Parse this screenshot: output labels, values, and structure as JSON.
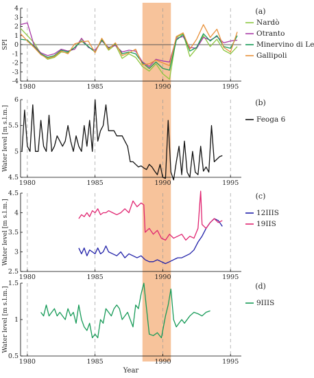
{
  "chart_data": [
    {
      "panel_tag": "(a)",
      "type": "line",
      "ylabel": "SPI",
      "ylim": [
        -4,
        4
      ],
      "yticks": [
        -4,
        -3,
        -2,
        -1,
        0,
        1,
        2,
        3,
        4
      ],
      "xlim": [
        1979.5,
        1995.8
      ],
      "xticks": [
        1980,
        1985,
        1990,
        1995
      ],
      "zero_line": true,
      "series": [
        {
          "name": "Nardò",
          "color": "#8cc63f",
          "x": [
            1979.5,
            1980,
            1980.5,
            1981,
            1981.5,
            1982,
            1982.5,
            1983,
            1983.5,
            1984,
            1984.5,
            1985,
            1985.5,
            1986,
            1986.5,
            1987,
            1987.5,
            1988,
            1988.5,
            1989,
            1989.5,
            1990,
            1990.5,
            1991,
            1991.5,
            1992,
            1992.5,
            1993,
            1993.5,
            1994,
            1994.5,
            1995,
            1995.5
          ],
          "y": [
            1.8,
            1.0,
            0.2,
            -1.0,
            -1.6,
            -1.4,
            -0.8,
            -0.9,
            -0.3,
            0.6,
            -0.2,
            -0.8,
            0.6,
            -0.6,
            0.0,
            -1.5,
            -1.0,
            -1.4,
            -2.4,
            -2.9,
            -2.1,
            -3.2,
            -3.8,
            0.8,
            1.2,
            -1.3,
            -0.4,
            1.0,
            -0.2,
            0.6,
            -0.6,
            -1.0,
            -0.2
          ]
        },
        {
          "name": "Otranto",
          "color": "#a83aa6",
          "x": [
            1979.5,
            1980,
            1980.5,
            1981,
            1981.5,
            1982,
            1982.5,
            1983,
            1983.5,
            1984,
            1984.5,
            1985,
            1985.5,
            1986,
            1986.5,
            1987,
            1987.5,
            1988,
            1988.5,
            1989,
            1989.5,
            1990,
            1990.5,
            1991,
            1991.5,
            1992,
            1992.5,
            1993,
            1993.5,
            1994,
            1994.5,
            1995,
            1995.5
          ],
          "y": [
            2.2,
            2.4,
            -0.1,
            -0.9,
            -1.2,
            -1.0,
            -0.5,
            -0.7,
            -0.5,
            0.7,
            -0.3,
            -0.6,
            0.4,
            -0.3,
            -0.1,
            -0.8,
            -0.6,
            -0.7,
            -1.9,
            -2.4,
            -1.6,
            -1.8,
            -1.9,
            0.7,
            0.9,
            -0.3,
            -0.4,
            0.8,
            0.5,
            0.9,
            0.2,
            0.4,
            0.5
          ]
        },
        {
          "name": "Minervino di Lecce",
          "color": "#169a57",
          "x": [
            1979.5,
            1980,
            1980.5,
            1981,
            1981.5,
            1982,
            1982.5,
            1983,
            1983.5,
            1984,
            1984.5,
            1985,
            1985.5,
            1986,
            1986.5,
            1987,
            1987.5,
            1988,
            1988.5,
            1989,
            1989.5,
            1990,
            1990.5,
            1991,
            1991.5,
            1992,
            1992.5,
            1993,
            1993.5,
            1994,
            1994.5,
            1995,
            1995.5
          ],
          "y": [
            0.6,
            0.5,
            -0.2,
            -1.0,
            -1.4,
            -1.2,
            -0.6,
            -0.8,
            -0.3,
            0.4,
            -0.2,
            -0.8,
            0.5,
            -0.4,
            0.1,
            -1.0,
            -0.8,
            -1.0,
            -2.0,
            -2.6,
            -1.9,
            -2.6,
            -2.8,
            0.5,
            1.1,
            -0.7,
            -0.3,
            1.2,
            0.4,
            1.0,
            -0.2,
            -0.4,
            1.0
          ]
        },
        {
          "name": "Gallipoli",
          "color": "#e8913a",
          "x": [
            1979.5,
            1980,
            1980.5,
            1981,
            1981.5,
            1982,
            1982.5,
            1983,
            1983.5,
            1984,
            1984.5,
            1985,
            1985.5,
            1986,
            1986.5,
            1987,
            1987.5,
            1988,
            1988.5,
            1989,
            1989.5,
            1990,
            1990.5,
            1991,
            1991.5,
            1992,
            1992.5,
            1993,
            1993.5,
            1994,
            1994.5,
            1995,
            1995.5
          ],
          "y": [
            1.2,
            0.4,
            -0.3,
            -1.1,
            -1.5,
            -1.3,
            -0.7,
            -1.0,
            0.1,
            0.3,
            0.4,
            -0.9,
            0.7,
            -0.5,
            0.2,
            -1.2,
            -0.9,
            -0.5,
            -2.2,
            -2.1,
            -1.7,
            -2.0,
            -2.3,
            0.9,
            1.3,
            -0.5,
            0.6,
            2.2,
            0.8,
            1.7,
            -0.3,
            -0.8,
            1.4
          ]
        }
      ]
    },
    {
      "panel_tag": "(b)",
      "type": "line",
      "ylabel": "Water level [m s.l.m.]",
      "ylim": [
        4.5,
        6
      ],
      "yticks": [
        4.5,
        5,
        5.5,
        6
      ],
      "ytick_labels": [
        "4.5",
        "5",
        "5.5",
        "6"
      ],
      "xlim": [
        1979.5,
        1995.8
      ],
      "xticks": [
        1980,
        1985,
        1990,
        1995
      ],
      "series": [
        {
          "name": "Feoga 6",
          "color": "#111111",
          "x": [
            1979.6,
            1979.8,
            1980.0,
            1980.2,
            1980.4,
            1980.6,
            1980.8,
            1981.0,
            1981.2,
            1981.4,
            1981.6,
            1981.8,
            1982.0,
            1982.2,
            1982.4,
            1982.6,
            1982.8,
            1983.0,
            1983.2,
            1983.4,
            1983.6,
            1983.8,
            1984.0,
            1984.2,
            1984.4,
            1984.6,
            1984.8,
            1985.0,
            1985.2,
            1985.4,
            1985.6,
            1985.8,
            1986.0,
            1986.2,
            1986.4,
            1986.6,
            1986.8,
            1987.0,
            1987.2,
            1987.4,
            1987.6,
            1987.8,
            1988.0,
            1988.2,
            1988.4,
            1988.6,
            1988.8,
            1989.0,
            1989.2,
            1989.4,
            1989.6,
            1989.8,
            1990.0,
            1990.2,
            1990.4,
            1990.6,
            1990.8,
            1991.0,
            1991.2,
            1991.4,
            1991.6,
            1991.8,
            1992.0,
            1992.2,
            1992.4,
            1992.6,
            1992.8,
            1993.0,
            1993.2,
            1993.4,
            1993.6,
            1993.8,
            1994.0,
            1994.2,
            1994.4
          ],
          "y": [
            5.0,
            5.8,
            5.1,
            5.0,
            5.9,
            5.0,
            5.0,
            5.6,
            5.1,
            5.0,
            5.7,
            5.0,
            5.1,
            5.3,
            5.2,
            5.1,
            5.2,
            5.5,
            5.2,
            5.0,
            5.3,
            5.1,
            5.0,
            5.5,
            5.1,
            5.6,
            5.0,
            6.0,
            5.2,
            5.4,
            5.5,
            5.9,
            5.4,
            5.4,
            5.4,
            5.3,
            5.3,
            5.3,
            5.2,
            5.1,
            4.8,
            4.8,
            4.75,
            4.7,
            4.72,
            4.68,
            4.65,
            4.75,
            4.7,
            4.62,
            4.55,
            4.75,
            4.5,
            4.48,
            5.6,
            4.6,
            4.45,
            4.8,
            5.1,
            4.55,
            5.2,
            4.6,
            4.5,
            5.0,
            4.6,
            4.55,
            5.1,
            4.62,
            4.7,
            4.6,
            5.5,
            4.8,
            4.85,
            4.9,
            4.92
          ]
        }
      ]
    },
    {
      "panel_tag": "(c)",
      "type": "line",
      "ylabel": "Water level [m s.l.m.]",
      "ylim": [
        2.5,
        4.5
      ],
      "yticks": [
        2.5,
        3,
        3.5,
        4,
        4.5
      ],
      "ytick_labels": [
        "2.5",
        "3",
        "3.5",
        "4",
        "4.5"
      ],
      "xlim": [
        1979.5,
        1995.8
      ],
      "xticks": [
        1980,
        1985,
        1990,
        1995
      ],
      "series": [
        {
          "name": "12IIIS",
          "color": "#1f1fa8",
          "x": [
            1983.8,
            1984.0,
            1984.2,
            1984.4,
            1984.6,
            1984.8,
            1985.0,
            1985.2,
            1985.4,
            1985.6,
            1985.8,
            1986.0,
            1986.3,
            1986.6,
            1986.9,
            1987.2,
            1987.5,
            1987.8,
            1988.1,
            1988.4,
            1988.7,
            1989.0,
            1989.3,
            1989.6,
            1989.9,
            1990.2,
            1990.5,
            1990.8,
            1991.1,
            1991.4,
            1991.7,
            1992.0,
            1992.3,
            1992.6,
            1992.9,
            1993.2,
            1993.5,
            1993.8,
            1994.1,
            1994.4
          ],
          "y": [
            3.1,
            2.95,
            3.1,
            2.9,
            3.05,
            3.0,
            2.95,
            3.1,
            2.95,
            3.0,
            3.15,
            3.0,
            2.95,
            2.9,
            3.0,
            2.85,
            2.95,
            2.9,
            2.85,
            2.9,
            2.8,
            2.75,
            2.75,
            2.8,
            2.75,
            2.7,
            2.75,
            2.8,
            2.85,
            2.85,
            2.9,
            2.95,
            3.05,
            3.25,
            3.4,
            3.6,
            3.75,
            3.85,
            3.8,
            3.65
          ]
        },
        {
          "name": "19IIS",
          "color": "#e02470",
          "x": [
            1983.8,
            1984.0,
            1984.2,
            1984.4,
            1984.6,
            1984.8,
            1985.0,
            1985.2,
            1985.4,
            1985.6,
            1985.8,
            1986.0,
            1986.3,
            1986.6,
            1986.9,
            1987.2,
            1987.5,
            1987.8,
            1988.1,
            1988.4,
            1988.6,
            1988.7,
            1989.0,
            1989.3,
            1989.6,
            1989.9,
            1990.2,
            1990.5,
            1990.8,
            1991.1,
            1991.4,
            1991.7,
            1992.0,
            1992.3,
            1992.6,
            1992.8,
            1992.9,
            1993.2,
            1993.5,
            1993.8,
            1994.1,
            1994.4
          ],
          "y": [
            3.85,
            3.95,
            3.9,
            4.0,
            3.9,
            4.05,
            4.0,
            4.1,
            3.95,
            4.0,
            4.0,
            4.05,
            4.0,
            3.95,
            4.0,
            4.1,
            4.0,
            4.3,
            4.15,
            4.25,
            4.2,
            3.5,
            3.6,
            3.45,
            3.55,
            3.35,
            3.3,
            3.45,
            3.35,
            3.4,
            3.45,
            3.3,
            3.4,
            3.35,
            3.6,
            4.55,
            3.7,
            3.6,
            3.75,
            3.85,
            3.75,
            3.8
          ]
        }
      ]
    },
    {
      "panel_tag": "(d)",
      "type": "line",
      "ylabel": "Water level [m s.l.m.]",
      "ylim": [
        0.5,
        1.5
      ],
      "yticks": [
        0.5,
        1,
        1.5
      ],
      "ytick_labels": [
        "0.5",
        "1",
        "1.5"
      ],
      "xlim": [
        1979.5,
        1995.8
      ],
      "xticks": [
        1980,
        1985,
        1990,
        1995
      ],
      "xlabel": "Year",
      "series": [
        {
          "name": "9IIIS",
          "color": "#169a57",
          "x": [
            1981.0,
            1981.2,
            1981.4,
            1981.6,
            1981.8,
            1982.0,
            1982.2,
            1982.4,
            1982.6,
            1982.8,
            1983.0,
            1983.2,
            1983.4,
            1983.6,
            1983.8,
            1984.0,
            1984.2,
            1984.4,
            1984.6,
            1984.8,
            1985.0,
            1985.2,
            1985.4,
            1985.6,
            1985.8,
            1986.0,
            1986.2,
            1986.4,
            1986.6,
            1986.8,
            1987.0,
            1987.2,
            1987.4,
            1987.6,
            1987.8,
            1988.0,
            1988.2,
            1988.4,
            1988.6,
            1989.0,
            1989.3,
            1989.6,
            1989.9,
            1990.1,
            1990.2,
            1990.4,
            1990.6,
            1990.8,
            1991.0,
            1991.2,
            1991.4,
            1991.6,
            1992.0,
            1992.3,
            1992.6,
            1992.9,
            1993.2,
            1993.5
          ],
          "y": [
            1.1,
            1.05,
            1.2,
            1.05,
            1.1,
            1.15,
            1.05,
            1.1,
            1.05,
            1.0,
            1.15,
            1.05,
            1.1,
            0.95,
            1.2,
            1.0,
            0.9,
            0.85,
            0.95,
            0.75,
            0.8,
            0.75,
            1.0,
            0.95,
            1.15,
            1.1,
            1.05,
            1.15,
            1.2,
            1.15,
            1.0,
            1.05,
            1.1,
            1.0,
            0.9,
            1.2,
            1.15,
            1.35,
            1.5,
            0.8,
            0.78,
            0.82,
            0.75,
            0.95,
            1.05,
            1.2,
            1.42,
            1.0,
            0.9,
            0.95,
            1.0,
            0.95,
            1.05,
            1.1,
            1.08,
            1.05,
            1.1,
            1.12
          ]
        }
      ]
    }
  ],
  "highlight": {
    "from": 1988.5,
    "to": 1990.6,
    "color": "#f6b98a"
  }
}
